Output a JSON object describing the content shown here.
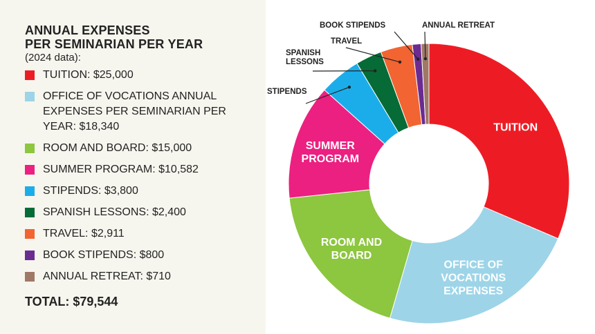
{
  "chart_data": {
    "type": "pie",
    "title_lines": [
      "ANNUAL EXPENSES",
      "PER SEMINARIAN PER YEAR"
    ],
    "subtitle": "(2024 data):",
    "total_label": "TOTAL: $79,544",
    "categories": [
      "TUITION",
      "OFFICE OF VOCATIONS ANNUAL EXPENSES PER SEMINARIAN PER YEAR",
      "ROOM AND BOARD",
      "SUMMER PROGRAM",
      "STIPENDS",
      "SPANISH LESSONS",
      "TRAVEL",
      "BOOK STIPENDS",
      "ANNUAL RETREAT"
    ],
    "values": [
      25000,
      18340,
      15000,
      10582,
      3800,
      2400,
      2911,
      800,
      710
    ],
    "colors": [
      "#ed1c24",
      "#9dd4e8",
      "#8dc63f",
      "#ec2081",
      "#1badea",
      "#066b36",
      "#f26431",
      "#6a2c91",
      "#a07866"
    ],
    "legend_labels": [
      "TUITION: $25,000",
      "OFFICE OF VOCATIONS ANNUAL EXPENSES PER SEMINARIAN PER YEAR: $18,340",
      "ROOM AND BOARD: $15,000",
      "SUMMER PROGRAM: $10,582",
      "STIPENDS: $3,800",
      "SPANISH LESSONS: $2,400",
      "TRAVEL: $2,911",
      "BOOK STIPENDS: $800",
      "ANNUAL RETREAT: $710"
    ],
    "slice_labels": [
      [
        "TUITION"
      ],
      [
        "OFFICE OF",
        "VOCATIONS",
        "EXPENSES"
      ],
      [
        "ROOM AND",
        "BOARD"
      ],
      [
        "SUMMER",
        "PROGRAM"
      ],
      [
        "STIPENDS"
      ],
      [
        "SPANISH",
        "LESSONS"
      ],
      [
        "TRAVEL"
      ],
      [
        "BOOK STIPENDS"
      ],
      [
        "ANNUAL RETREAT"
      ]
    ],
    "legend_position": "left",
    "chart_style": "donut",
    "grid": false
  }
}
